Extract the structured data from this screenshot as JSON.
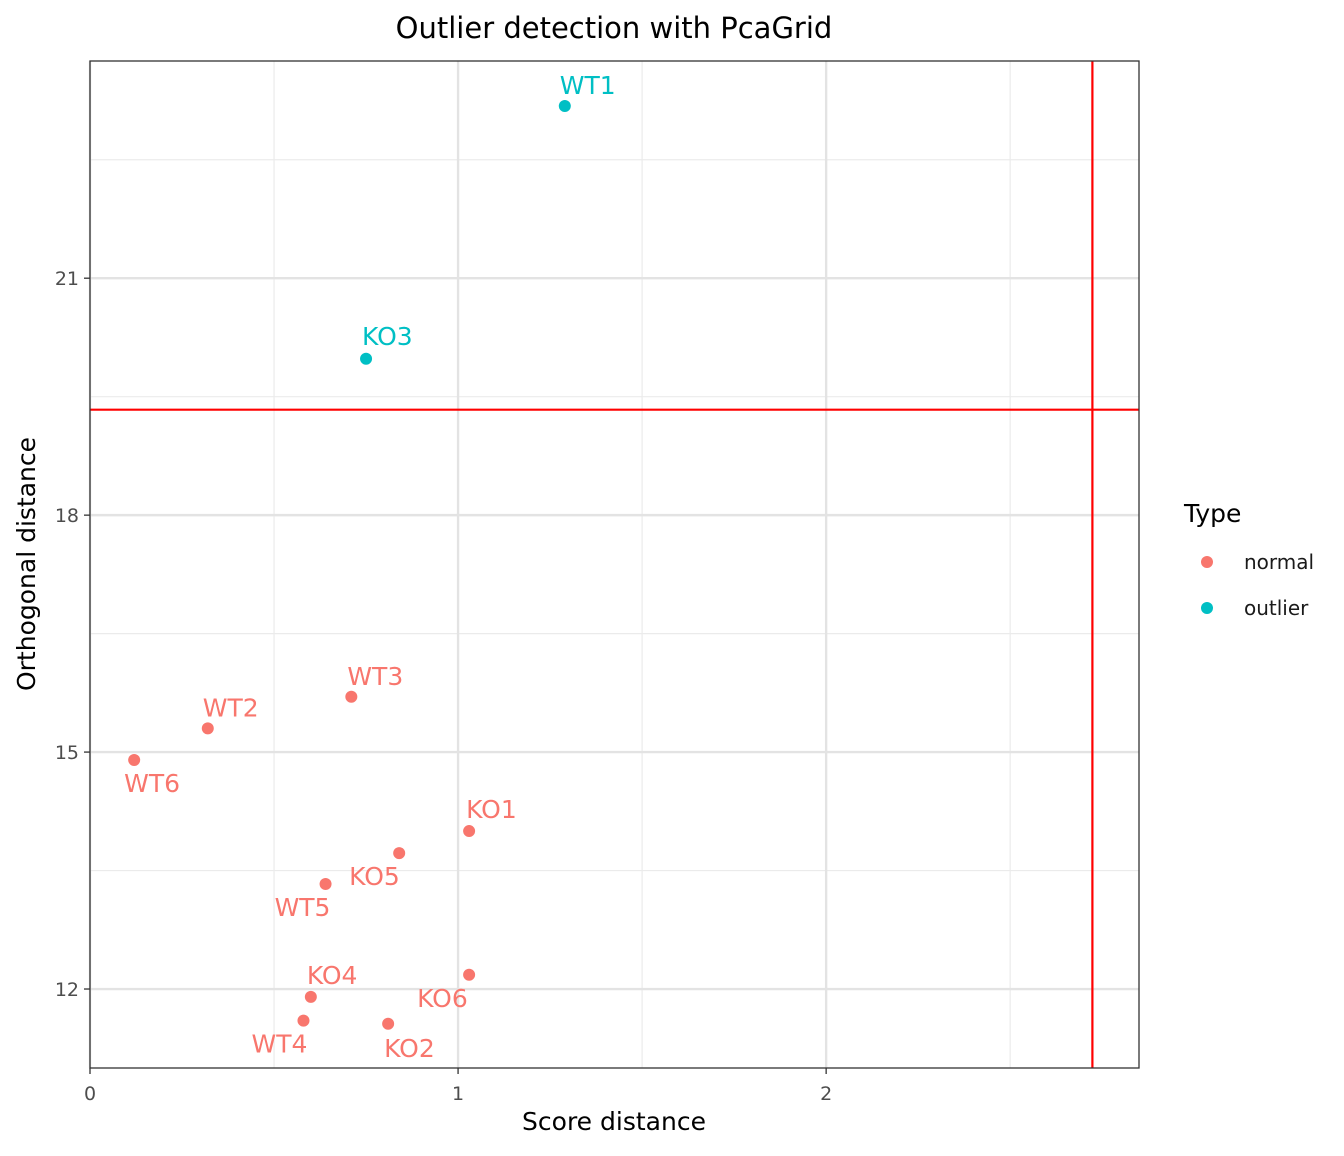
{
  "chart_data": {
    "type": "scatter",
    "title": "Outlier detection with PcaGrid",
    "xlabel": "Score distance",
    "ylabel": "Orthogonal distance",
    "xlim": [
      0,
      2.85
    ],
    "ylim": [
      11.0,
      23.75
    ],
    "x_ticks": [
      0,
      1,
      2
    ],
    "y_ticks": [
      12,
      15,
      18,
      21
    ],
    "x_minor_ticks": [
      0.5,
      1.5,
      2.5
    ],
    "y_minor_ticks": [
      13.5,
      16.5,
      19.5,
      22.5
    ],
    "grid": true,
    "legend": {
      "title": "Type",
      "position": "right",
      "entries": [
        {
          "label": "normal",
          "color": "#F8766D"
        },
        {
          "label": "outlier",
          "color": "#00BFC4"
        }
      ]
    },
    "cutoffs": {
      "score_distance": 2.7234,
      "orthogonal_distance": 19.3354,
      "color": "#FF0000"
    },
    "series": [
      {
        "name": "normal",
        "color": "#F8766D",
        "points": [
          {
            "label": "WT2",
            "x": 0.32,
            "y": 15.3
          },
          {
            "label": "WT3",
            "x": 0.71,
            "y": 15.7
          },
          {
            "label": "WT6",
            "x": 0.12,
            "y": 14.9
          },
          {
            "label": "KO1",
            "x": 1.03,
            "y": 14.0
          },
          {
            "label": "KO5",
            "x": 0.84,
            "y": 13.72
          },
          {
            "label": "WT5",
            "x": 0.64,
            "y": 13.33
          },
          {
            "label": "KO6",
            "x": 1.03,
            "y": 12.18
          },
          {
            "label": "KO4",
            "x": 0.6,
            "y": 11.9
          },
          {
            "label": "WT4",
            "x": 0.58,
            "y": 11.6
          },
          {
            "label": "KO2",
            "x": 0.81,
            "y": 11.56
          }
        ]
      },
      {
        "name": "outlier",
        "color": "#00BFC4",
        "points": [
          {
            "label": "WT1",
            "x": 1.29,
            "y": 23.18
          },
          {
            "label": "KO3",
            "x": 0.75,
            "y": 19.98
          }
        ]
      }
    ]
  }
}
